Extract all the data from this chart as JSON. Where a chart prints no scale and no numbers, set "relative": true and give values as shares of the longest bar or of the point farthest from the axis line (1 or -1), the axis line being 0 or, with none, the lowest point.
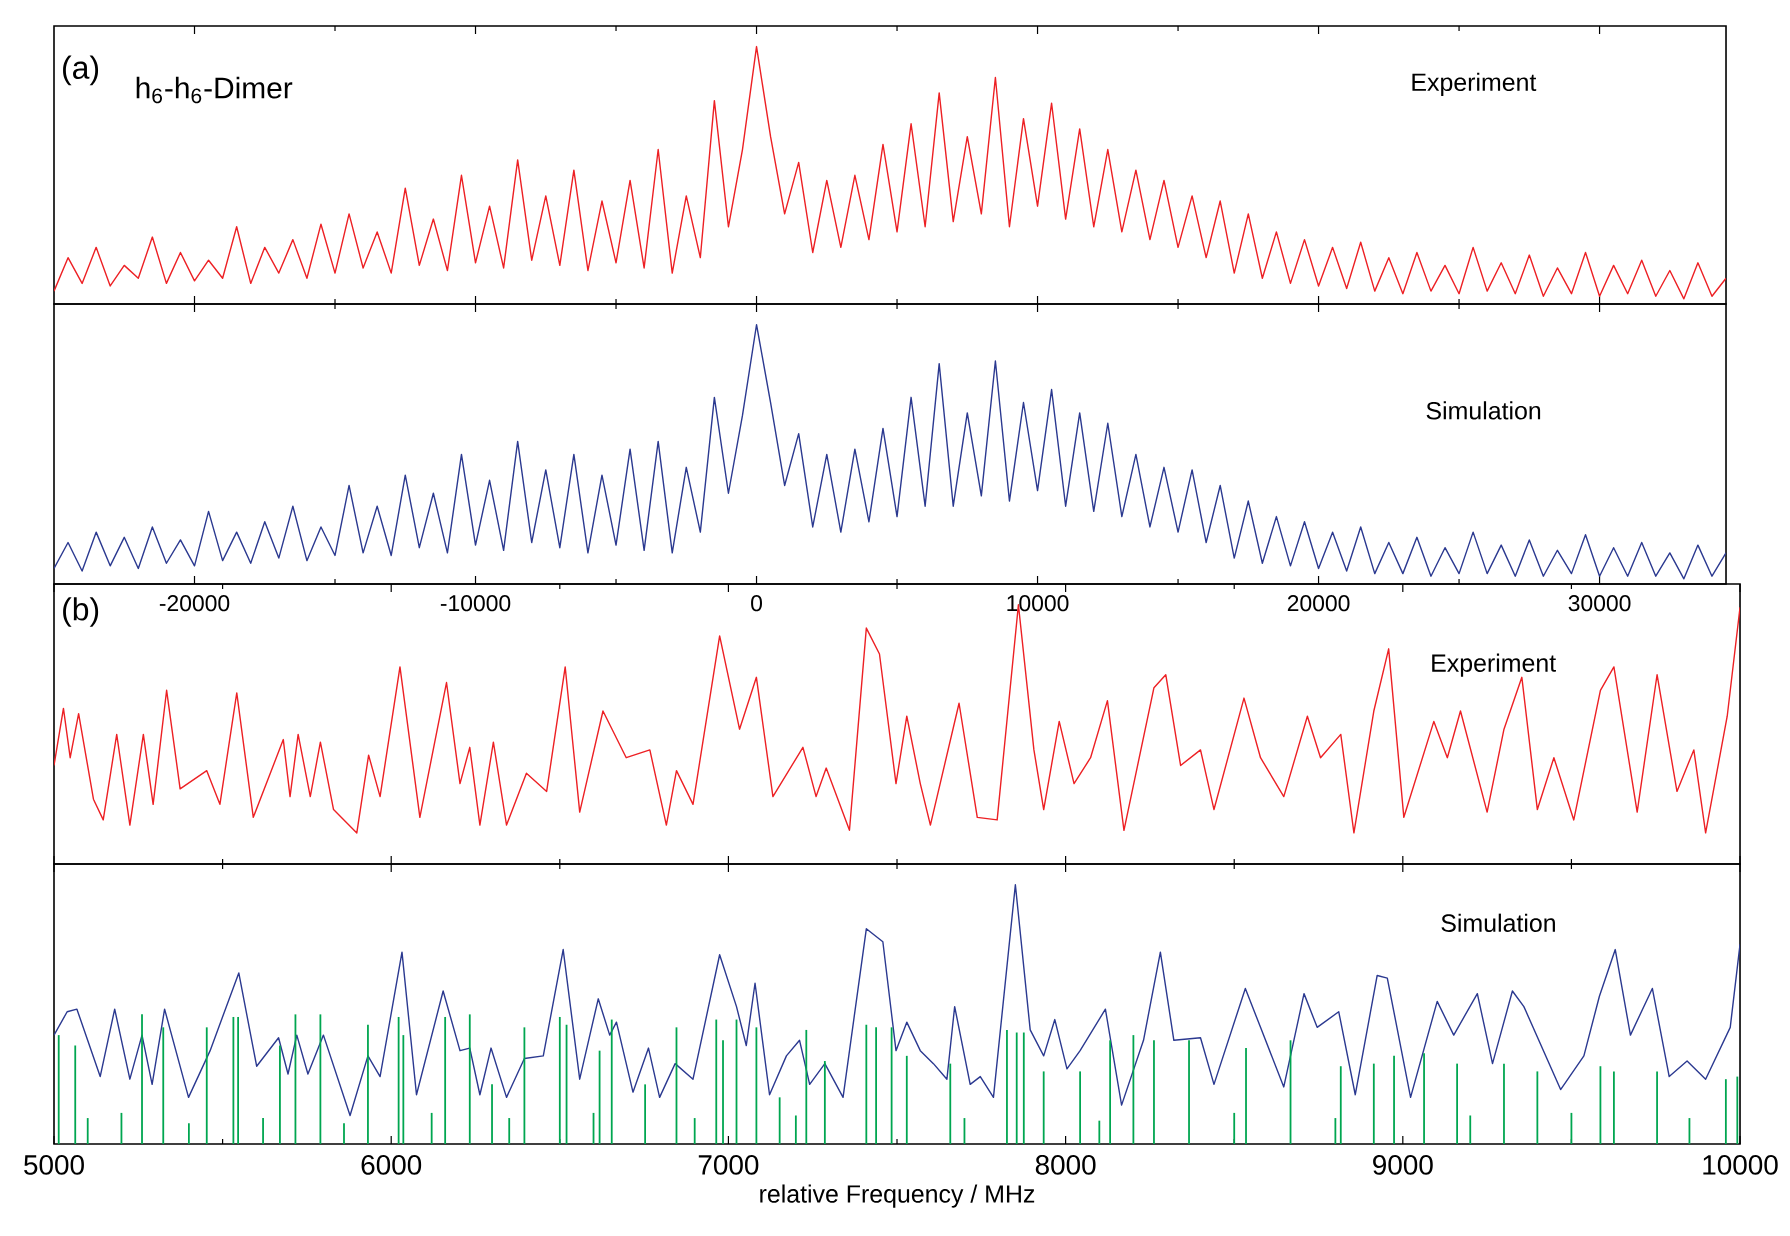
{
  "chart_data": [
    {
      "type": "line",
      "relative": true,
      "xlim": [
        -25000,
        34500
      ],
      "xticks": [
        -20000,
        -10000,
        0,
        10000,
        20000,
        30000
      ],
      "tick_labels": false,
      "annotations": [
        "(a)",
        "h$_{6}$-h$_{6}$-Dimer",
        "Experiment"
      ],
      "x": [
        -25000,
        -24500,
        -24000,
        -23500,
        -23000,
        -22500,
        -22000,
        -21500,
        -21000,
        -20500,
        -20000,
        -19500,
        -19000,
        -18500,
        -18000,
        -17500,
        -17000,
        -16500,
        -16000,
        -15500,
        -15000,
        -14500,
        -14000,
        -13500,
        -13000,
        -12500,
        -12000,
        -11500,
        -11000,
        -10500,
        -10000,
        -9500,
        -9000,
        -8500,
        -8000,
        -7500,
        -7000,
        -6500,
        -6000,
        -5500,
        -5000,
        -4500,
        -4000,
        -3500,
        -3000,
        -2500,
        -2000,
        -1500,
        -1000,
        -500,
        0,
        500,
        1000,
        1500,
        2000,
        2500,
        3000,
        3500,
        4000,
        4500,
        5000,
        5500,
        6000,
        6500,
        7000,
        7500,
        8000,
        8500,
        9000,
        9500,
        10000,
        10500,
        11000,
        11500,
        12000,
        12500,
        13000,
        13500,
        14000,
        14500,
        15000,
        15500,
        16000,
        16500,
        17000,
        17500,
        18000,
        18500,
        19000,
        19500,
        20000,
        20500,
        21000,
        21500,
        22000,
        22500,
        23000,
        23500,
        24000,
        24500,
        25000,
        25500,
        26000,
        26500,
        27000,
        27500,
        28000,
        28500,
        29000,
        29500,
        30000,
        30500,
        31000,
        31500,
        32000,
        32500,
        33000,
        33500,
        34000,
        34500
      ],
      "series": [
        {
          "color": "#ed2024",
          "values": [
            0.05,
            0.18,
            0.08,
            0.22,
            0.07,
            0.15,
            0.1,
            0.26,
            0.08,
            0.2,
            0.09,
            0.17,
            0.1,
            0.3,
            0.08,
            0.22,
            0.12,
            0.25,
            0.1,
            0.31,
            0.12,
            0.35,
            0.14,
            0.28,
            0.12,
            0.45,
            0.15,
            0.33,
            0.13,
            0.5,
            0.16,
            0.38,
            0.14,
            0.56,
            0.17,
            0.42,
            0.15,
            0.52,
            0.13,
            0.4,
            0.16,
            0.48,
            0.14,
            0.6,
            0.12,
            0.42,
            0.18,
            0.79,
            0.3,
            0.6,
            1.0,
            0.65,
            0.35,
            0.55,
            0.2,
            0.48,
            0.22,
            0.5,
            0.25,
            0.62,
            0.28,
            0.7,
            0.3,
            0.82,
            0.32,
            0.65,
            0.35,
            0.88,
            0.3,
            0.72,
            0.38,
            0.78,
            0.33,
            0.68,
            0.3,
            0.6,
            0.28,
            0.52,
            0.25,
            0.48,
            0.22,
            0.42,
            0.18,
            0.4,
            0.12,
            0.35,
            0.1,
            0.28,
            0.08,
            0.25,
            0.07,
            0.22,
            0.06,
            0.24,
            0.05,
            0.18,
            0.04,
            0.2,
            0.05,
            0.15,
            0.04,
            0.22,
            0.05,
            0.16,
            0.04,
            0.19,
            0.03,
            0.14,
            0.04,
            0.2,
            0.03,
            0.15,
            0.04,
            0.17,
            0.03,
            0.13,
            0.02,
            0.16,
            0.03,
            0.1
          ]
        }
      ]
    },
    {
      "type": "line",
      "relative": true,
      "xlim": [
        -25000,
        34500
      ],
      "xticks": [
        -20000,
        -10000,
        0,
        10000,
        20000,
        30000
      ],
      "tick_labels": "x",
      "annotations": [
        "Simulation"
      ],
      "x": [
        -25000,
        -24500,
        -24000,
        -23500,
        -23000,
        -22500,
        -22000,
        -21500,
        -21000,
        -20500,
        -20000,
        -19500,
        -19000,
        -18500,
        -18000,
        -17500,
        -17000,
        -16500,
        -16000,
        -15500,
        -15000,
        -14500,
        -14000,
        -13500,
        -13000,
        -12500,
        -12000,
        -11500,
        -11000,
        -10500,
        -10000,
        -9500,
        -9000,
        -8500,
        -8000,
        -7500,
        -7000,
        -6500,
        -6000,
        -5500,
        -5000,
        -4500,
        -4000,
        -3500,
        -3000,
        -2500,
        -2000,
        -1500,
        -1000,
        -500,
        0,
        500,
        1000,
        1500,
        2000,
        2500,
        3000,
        3500,
        4000,
        4500,
        5000,
        5500,
        6000,
        6500,
        7000,
        7500,
        8000,
        8500,
        9000,
        9500,
        10000,
        10500,
        11000,
        11500,
        12000,
        12500,
        13000,
        13500,
        14000,
        14500,
        15000,
        15500,
        16000,
        16500,
        17000,
        17500,
        18000,
        18500,
        19000,
        19500,
        20000,
        20500,
        21000,
        21500,
        22000,
        22500,
        23000,
        23500,
        24000,
        24500,
        25000,
        25500,
        26000,
        26500,
        27000,
        27500,
        28000,
        28500,
        29000,
        29500,
        30000,
        30500,
        31000,
        31500,
        32000,
        32500,
        33000,
        33500,
        34000,
        34500
      ],
      "series": [
        {
          "color": "#2b3990",
          "values": [
            0.06,
            0.16,
            0.05,
            0.2,
            0.07,
            0.18,
            0.06,
            0.22,
            0.08,
            0.17,
            0.07,
            0.28,
            0.09,
            0.2,
            0.08,
            0.24,
            0.1,
            0.3,
            0.09,
            0.22,
            0.11,
            0.38,
            0.12,
            0.3,
            0.11,
            0.42,
            0.14,
            0.35,
            0.12,
            0.5,
            0.15,
            0.4,
            0.13,
            0.55,
            0.16,
            0.44,
            0.14,
            0.5,
            0.12,
            0.42,
            0.15,
            0.52,
            0.13,
            0.55,
            0.12,
            0.45,
            0.2,
            0.72,
            0.35,
            0.65,
            1.0,
            0.7,
            0.38,
            0.58,
            0.22,
            0.5,
            0.2,
            0.52,
            0.24,
            0.6,
            0.26,
            0.72,
            0.3,
            0.85,
            0.3,
            0.66,
            0.34,
            0.86,
            0.32,
            0.7,
            0.36,
            0.75,
            0.3,
            0.66,
            0.28,
            0.62,
            0.26,
            0.5,
            0.22,
            0.45,
            0.2,
            0.44,
            0.16,
            0.38,
            0.1,
            0.32,
            0.08,
            0.26,
            0.07,
            0.24,
            0.06,
            0.2,
            0.05,
            0.22,
            0.04,
            0.16,
            0.04,
            0.18,
            0.03,
            0.14,
            0.04,
            0.2,
            0.04,
            0.15,
            0.03,
            0.17,
            0.03,
            0.13,
            0.04,
            0.19,
            0.03,
            0.14,
            0.03,
            0.16,
            0.03,
            0.12,
            0.02,
            0.15,
            0.03,
            0.12
          ]
        }
      ]
    },
    {
      "type": "line",
      "relative": true,
      "xlim": [
        5000,
        10000
      ],
      "xticks": [
        5000,
        6000,
        7000,
        8000,
        9000,
        10000
      ],
      "tick_labels": false,
      "annotations": [
        "(b)",
        "Experiment"
      ],
      "series": [
        {
          "color": "#ed2024",
          "x": [
            5000,
            5028,
            5048,
            5073,
            5117,
            5146,
            5186,
            5225,
            5265,
            5294,
            5334,
            5374,
            5453,
            5492,
            5542,
            5591,
            5680,
            5700,
            5724,
            5760,
            5790,
            5829,
            5898,
            5933,
            5967,
            6026,
            6085,
            6164,
            6204,
            6233,
            6263,
            6303,
            6342,
            6401,
            6461,
            6516,
            6559,
            6628,
            6697,
            6767,
            6816,
            6846,
            6895,
            6974,
            7033,
            7083,
            7132,
            7221,
            7260,
            7290,
            7359,
            7409,
            7448,
            7497,
            7529,
            7569,
            7599,
            7684,
            7738,
            7797,
            7860,
            7906,
            7935,
            7981,
            8025,
            8074,
            8124,
            8173,
            8262,
            8297,
            8341,
            8400,
            8440,
            8529,
            8578,
            8647,
            8717,
            8756,
            8816,
            8855,
            8914,
            8958,
            9003,
            9092,
            9132,
            9171,
            9250,
            9300,
            9353,
            9399,
            9448,
            9507,
            9586,
            9626,
            9695,
            9754,
            9813,
            9863,
            9898,
            9962,
            10000
          ],
          "values": [
            0.38,
            0.6,
            0.41,
            0.58,
            0.25,
            0.17,
            0.5,
            0.15,
            0.5,
            0.23,
            0.67,
            0.29,
            0.36,
            0.23,
            0.66,
            0.18,
            0.48,
            0.26,
            0.5,
            0.26,
            0.47,
            0.21,
            0.12,
            0.42,
            0.26,
            0.76,
            0.18,
            0.7,
            0.31,
            0.45,
            0.15,
            0.47,
            0.15,
            0.35,
            0.28,
            0.76,
            0.2,
            0.59,
            0.41,
            0.44,
            0.15,
            0.36,
            0.23,
            0.88,
            0.52,
            0.72,
            0.26,
            0.45,
            0.26,
            0.37,
            0.13,
            0.91,
            0.81,
            0.31,
            0.57,
            0.31,
            0.15,
            0.62,
            0.18,
            0.17,
            1.0,
            0.44,
            0.21,
            0.55,
            0.31,
            0.41,
            0.63,
            0.13,
            0.68,
            0.73,
            0.38,
            0.44,
            0.21,
            0.64,
            0.41,
            0.26,
            0.57,
            0.41,
            0.5,
            0.12,
            0.59,
            0.83,
            0.18,
            0.55,
            0.41,
            0.59,
            0.2,
            0.52,
            0.72,
            0.21,
            0.41,
            0.17,
            0.67,
            0.76,
            0.2,
            0.73,
            0.28,
            0.44,
            0.12,
            0.57,
            0.99
          ]
        }
      ]
    },
    {
      "type": "line",
      "relative": true,
      "xlim": [
        5000,
        10000
      ],
      "xticks": [
        5000,
        6000,
        7000,
        8000,
        9000,
        10000
      ],
      "tick_labels": "x",
      "xlabel": "relative Frequency / MHz",
      "annotations": [
        "Simulation"
      ],
      "series": [
        {
          "color": "#2b3990",
          "x": [
            5000,
            5039,
            5068,
            5137,
            5180,
            5225,
            5261,
            5291,
            5328,
            5399,
            5463,
            5548,
            5601,
            5666,
            5694,
            5720,
            5753,
            5799,
            5878,
            5931,
            5967,
            6032,
            6075,
            6154,
            6204,
            6233,
            6263,
            6296,
            6342,
            6395,
            6451,
            6510,
            6559,
            6614,
            6648,
            6668,
            6717,
            6763,
            6796,
            6842,
            6895,
            6974,
            7024,
            7053,
            7079,
            7122,
            7172,
            7211,
            7241,
            7286,
            7340,
            7409,
            7458,
            7497,
            7529,
            7569,
            7608,
            7648,
            7671,
            7717,
            7747,
            7786,
            7851,
            7895,
            7935,
            7968,
            8004,
            8043,
            8118,
            8166,
            8231,
            8281,
            8321,
            8400,
            8440,
            8533,
            8578,
            8647,
            8707,
            8746,
            8810,
            8859,
            8924,
            8954,
            9023,
            9102,
            9151,
            9221,
            9266,
            9325,
            9359,
            9468,
            9537,
            9583,
            9630,
            9675,
            9740,
            9790,
            9843,
            9898,
            9971,
            10000
          ],
          "values": [
            0.42,
            0.51,
            0.52,
            0.26,
            0.52,
            0.25,
            0.42,
            0.23,
            0.52,
            0.18,
            0.36,
            0.66,
            0.3,
            0.41,
            0.27,
            0.42,
            0.27,
            0.42,
            0.11,
            0.34,
            0.26,
            0.74,
            0.19,
            0.59,
            0.36,
            0.37,
            0.19,
            0.37,
            0.18,
            0.33,
            0.34,
            0.75,
            0.25,
            0.56,
            0.42,
            0.47,
            0.2,
            0.37,
            0.18,
            0.31,
            0.25,
            0.73,
            0.53,
            0.38,
            0.62,
            0.19,
            0.34,
            0.4,
            0.23,
            0.31,
            0.18,
            0.83,
            0.78,
            0.36,
            0.47,
            0.36,
            0.31,
            0.25,
            0.53,
            0.23,
            0.26,
            0.18,
            1.0,
            0.44,
            0.34,
            0.48,
            0.29,
            0.36,
            0.52,
            0.15,
            0.4,
            0.74,
            0.4,
            0.41,
            0.23,
            0.6,
            0.45,
            0.22,
            0.58,
            0.45,
            0.51,
            0.19,
            0.65,
            0.64,
            0.18,
            0.55,
            0.42,
            0.58,
            0.31,
            0.59,
            0.53,
            0.21,
            0.34,
            0.57,
            0.75,
            0.42,
            0.6,
            0.26,
            0.32,
            0.25,
            0.45,
            0.77
          ]
        },
        {
          "type": "bar",
          "color": "#00a650",
          "x": [
            5014,
            5063,
            5100,
            5200,
            5261,
            5324,
            5400,
            5453,
            5532,
            5546,
            5620,
            5670,
            5716,
            5790,
            5860,
            5931,
            6022,
            6036,
            6120,
            6160,
            6233,
            6299,
            6350,
            6395,
            6500,
            6520,
            6600,
            6618,
            6654,
            6753,
            6846,
            6900,
            6964,
            6984,
            7024,
            7083,
            7152,
            7200,
            7231,
            7286,
            7409,
            7438,
            7484,
            7529,
            7658,
            7700,
            7826,
            7855,
            7876,
            7935,
            8043,
            8100,
            8132,
            8201,
            8262,
            8366,
            8500,
            8535,
            8667,
            8800,
            8816,
            8914,
            8974,
            9063,
            9161,
            9200,
            9300,
            9399,
            9500,
            9586,
            9626,
            9754,
            9850,
            9958,
            9992
          ],
          "values": [
            0.42,
            0.38,
            0.1,
            0.12,
            0.5,
            0.45,
            0.08,
            0.45,
            0.49,
            0.49,
            0.1,
            0.38,
            0.5,
            0.5,
            0.08,
            0.46,
            0.49,
            0.42,
            0.12,
            0.49,
            0.5,
            0.23,
            0.1,
            0.45,
            0.49,
            0.46,
            0.12,
            0.36,
            0.48,
            0.23,
            0.45,
            0.1,
            0.48,
            0.4,
            0.48,
            0.45,
            0.18,
            0.11,
            0.44,
            0.32,
            0.46,
            0.45,
            0.45,
            0.34,
            0.31,
            0.1,
            0.44,
            0.43,
            0.43,
            0.28,
            0.28,
            0.09,
            0.4,
            0.42,
            0.4,
            0.4,
            0.12,
            0.37,
            0.4,
            0.1,
            0.3,
            0.31,
            0.34,
            0.35,
            0.31,
            0.11,
            0.31,
            0.28,
            0.12,
            0.3,
            0.28,
            0.28,
            0.1,
            0.25,
            0.26
          ]
        }
      ]
    }
  ]
}
